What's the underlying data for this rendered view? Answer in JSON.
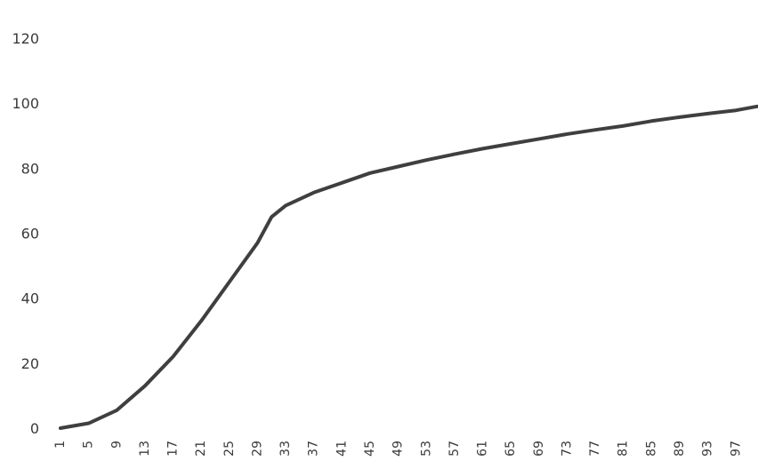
{
  "chart_data": {
    "type": "line",
    "title": "",
    "xlabel": "",
    "ylabel": "",
    "ylim": [
      0,
      120
    ],
    "yticks": [
      "0",
      "20",
      "40",
      "60",
      "80",
      "100",
      "120"
    ],
    "xticks": [
      "1",
      "5",
      "9",
      "13",
      "17",
      "21",
      "25",
      "29",
      "33",
      "37",
      "41",
      "45",
      "49",
      "53",
      "57",
      "61",
      "65",
      "69",
      "73",
      "77",
      "81",
      "85",
      "89",
      "93",
      "97"
    ],
    "grid": false,
    "legend": "none",
    "colors": {
      "line": "#3f3f3f"
    },
    "x": [
      1,
      5,
      9,
      13,
      17,
      21,
      25,
      29,
      31,
      33,
      37,
      41,
      45,
      49,
      53,
      57,
      61,
      65,
      69,
      73,
      77,
      81,
      85,
      89,
      93,
      97,
      100
    ],
    "series": [
      {
        "values": [
          0,
          1.5,
          5.5,
          13,
          22,
          33,
          45,
          57,
          65,
          68.5,
          72.5,
          75.5,
          78.5,
          80.5,
          82.5,
          84.3,
          86,
          87.5,
          89,
          90.5,
          91.8,
          93,
          94.5,
          95.7,
          96.8,
          97.8,
          99
        ]
      }
    ]
  }
}
